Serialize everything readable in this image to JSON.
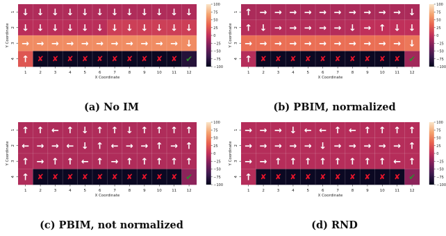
{
  "colors": {
    "scale": [
      "#03051a",
      "#3b1a4e",
      "#7a1e5a",
      "#c0305a",
      "#e8624f",
      "#f4a26e",
      "#fae5c8"
    ],
    "arrow": "#ffffff",
    "cross": "#e8152b",
    "check": "#2e8b2e"
  },
  "colorbar": {
    "min": -100,
    "max": 100,
    "ticks": [
      "100",
      "75",
      "50",
      "25",
      "0",
      "−25",
      "−50",
      "−75",
      "−100"
    ]
  },
  "axis_labels": {
    "xlabel": "X Coordinate",
    "ylabel": "Y Coordinate"
  },
  "chart_data": [
    {
      "type": "heatmap",
      "caption": "(a) No IM",
      "xlabel": "X Coordinate",
      "ylabel": "Y Coordinate",
      "x_ticks": [
        "1",
        "2",
        "3",
        "4",
        "5",
        "6",
        "7",
        "8",
        "9",
        "10",
        "11",
        "12"
      ],
      "y_ticks": [
        "1",
        "2",
        "3",
        "4"
      ],
      "clim": [
        -100,
        100
      ],
      "values": [
        [
          -8,
          -8,
          -8,
          -8,
          -8,
          -8,
          -8,
          -8,
          -8,
          -8,
          -8,
          -8
        ],
        [
          -3,
          -3,
          -3,
          -3,
          -3,
          -3,
          10,
          10,
          10,
          10,
          10,
          10
        ],
        [
          55,
          55,
          55,
          55,
          55,
          55,
          55,
          55,
          55,
          55,
          55,
          55
        ],
        [
          25,
          -95,
          -95,
          -95,
          -95,
          -95,
          -95,
          -95,
          -95,
          -95,
          -95,
          -80
        ]
      ],
      "symbols": [
        [
          "↓",
          "↓",
          "↓",
          "↓",
          "↓",
          "↓",
          "↓",
          "↓",
          "↓",
          "↓",
          "↓",
          "↓"
        ],
        [
          "↓",
          "↓",
          "↓",
          "↓",
          "↓",
          "↓",
          "↓",
          "↓",
          "↓",
          "↓",
          "↓",
          "↓"
        ],
        [
          "→",
          "→",
          "→",
          "→",
          "→",
          "→",
          "→",
          "→",
          "→",
          "→",
          "→",
          "↓"
        ],
        [
          "↑",
          "✘",
          "✘",
          "✘",
          "✘",
          "✘",
          "✘",
          "✘",
          "✘",
          "✘",
          "✘",
          "✔"
        ]
      ]
    },
    {
      "type": "heatmap",
      "caption": "(b) PBIM, normalized",
      "xlabel": "X Coordinate",
      "ylabel": "Y Coordinate",
      "x_ticks": [
        "1",
        "2",
        "3",
        "4",
        "5",
        "6",
        "7",
        "8",
        "9",
        "10",
        "11",
        "12"
      ],
      "y_ticks": [
        "1",
        "2",
        "3",
        "4"
      ],
      "clim": [
        -100,
        100
      ],
      "values": [
        [
          -10,
          -10,
          -10,
          -10,
          -10,
          -10,
          -10,
          -10,
          -10,
          -10,
          -10,
          -10
        ],
        [
          -5,
          -5,
          -5,
          -5,
          -5,
          -5,
          -5,
          -5,
          0,
          0,
          0,
          0
        ],
        [
          40,
          40,
          40,
          40,
          40,
          40,
          40,
          40,
          40,
          40,
          40,
          45
        ],
        [
          -5,
          -95,
          -95,
          -95,
          -95,
          -95,
          -95,
          -95,
          -95,
          -95,
          -95,
          -15
        ]
      ],
      "symbols": [
        [
          "↑",
          "→",
          "→",
          "→",
          "→",
          "→",
          "→",
          "→",
          "→",
          "→",
          "→",
          "↓"
        ],
        [
          "↑",
          "↓",
          "→",
          "→",
          "→",
          "→",
          "→",
          "↓",
          "→",
          "↑",
          "↓",
          "↓"
        ],
        [
          "→",
          "→",
          "→",
          "→",
          "→",
          "→",
          "→",
          "→",
          "→",
          "→",
          "→",
          "↓"
        ],
        [
          "↑",
          "✘",
          "✘",
          "✘",
          "✘",
          "✘",
          "✘",
          "✘",
          "✘",
          "✘",
          "✘",
          "✔"
        ]
      ]
    },
    {
      "type": "heatmap",
      "caption": "(c) PBIM, not normalized",
      "xlabel": "X Coordinate",
      "ylabel": "Y Coordinate",
      "x_ticks": [
        "1",
        "2",
        "3",
        "4",
        "5",
        "6",
        "7",
        "8",
        "9",
        "10",
        "11",
        "12"
      ],
      "y_ticks": [
        "1",
        "2",
        "3",
        "4"
      ],
      "clim": [
        -100,
        100
      ],
      "values": [
        [
          -8,
          -8,
          -8,
          -8,
          -8,
          -8,
          -8,
          -8,
          -8,
          -8,
          -8,
          -8
        ],
        [
          -8,
          -8,
          -8,
          -8,
          -8,
          -8,
          -8,
          -8,
          -8,
          -8,
          -8,
          -8
        ],
        [
          -8,
          -8,
          -8,
          -8,
          -8,
          -8,
          -8,
          -8,
          -8,
          -8,
          -8,
          -8
        ],
        [
          -8,
          -95,
          -95,
          -95,
          -95,
          -95,
          -95,
          -95,
          -95,
          -95,
          -95,
          -25
        ]
      ],
      "symbols": [
        [
          "↑",
          "↑",
          "←",
          "↑",
          "↓",
          "↑",
          "↑",
          "↓",
          "↑",
          "↑",
          "↑",
          "↑"
        ],
        [
          "←",
          "→",
          "→",
          "←",
          "↓",
          "↑",
          "←",
          "→",
          "→",
          "↑",
          "→",
          "↑"
        ],
        [
          "↑",
          "→",
          "↑",
          "↑",
          "←",
          "↑",
          "→",
          "↑",
          "↑",
          "↑",
          "↑",
          "↑"
        ],
        [
          "↑",
          "✘",
          "✘",
          "✘",
          "✘",
          "✘",
          "✘",
          "✘",
          "✘",
          "✘",
          "✘",
          "✔"
        ]
      ]
    },
    {
      "type": "heatmap",
      "caption": "(d) RND",
      "xlabel": "X Coordinate",
      "ylabel": "Y Coordinate",
      "x_ticks": [
        "1",
        "2",
        "3",
        "4",
        "5",
        "6",
        "7",
        "8",
        "9",
        "10",
        "11",
        "12"
      ],
      "y_ticks": [
        "1",
        "2",
        "3",
        "4"
      ],
      "clim": [
        -100,
        100
      ],
      "values": [
        [
          -5,
          -5,
          -5,
          -5,
          -5,
          -5,
          -5,
          -5,
          -5,
          -5,
          -5,
          -5
        ],
        [
          -5,
          -5,
          -5,
          -5,
          -5,
          -5,
          -5,
          -5,
          -5,
          -5,
          -5,
          -5
        ],
        [
          -5,
          -5,
          -5,
          -5,
          -5,
          -5,
          -5,
          -5,
          -5,
          -5,
          -5,
          -5
        ],
        [
          -5,
          -95,
          -95,
          -95,
          -95,
          -95,
          -95,
          -95,
          -95,
          -95,
          -95,
          -25
        ]
      ],
      "symbols": [
        [
          "→",
          "→",
          "→",
          "↓",
          "←",
          "←",
          "↑",
          "←",
          "↑",
          "↑",
          "↑",
          "↑"
        ],
        [
          "→",
          "→",
          "→",
          "→",
          "→",
          "↓",
          "→",
          "→",
          "→",
          "→",
          "→",
          "↑"
        ],
        [
          "→",
          "→",
          "↑",
          "↑",
          "↑",
          "↑",
          "↑",
          "↑",
          "↑",
          "↑",
          "←",
          "↑"
        ],
        [
          "↑",
          "✘",
          "✘",
          "✘",
          "✘",
          "✘",
          "✘",
          "✘",
          "✘",
          "✘",
          "✘",
          "✔"
        ]
      ]
    }
  ]
}
